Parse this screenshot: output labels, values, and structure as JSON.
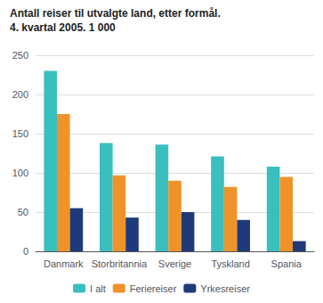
{
  "chart_data": {
    "type": "bar",
    "title": "Antall reiser til utvalgte land, etter formål.",
    "subtitle": "4. kvartal 2005. 1 000",
    "categories": [
      "Danmark",
      "Storbritannia",
      "Sverige",
      "Tyskland",
      "Spania"
    ],
    "series": [
      {
        "name": "I alt",
        "color": "#3abfbf",
        "values": [
          230,
          138,
          136,
          121,
          108
        ]
      },
      {
        "name": "Feriereiser",
        "color": "#f0922a",
        "values": [
          175,
          97,
          90,
          82,
          95
        ]
      },
      {
        "name": "Yrkesreiser",
        "color": "#1f3a7a",
        "values": [
          55,
          43,
          50,
          40,
          13
        ]
      }
    ],
    "ylim": [
      0,
      250
    ],
    "yticks": [
      0,
      50,
      100,
      150,
      200,
      250
    ],
    "grid": true,
    "legend": "bottom"
  }
}
